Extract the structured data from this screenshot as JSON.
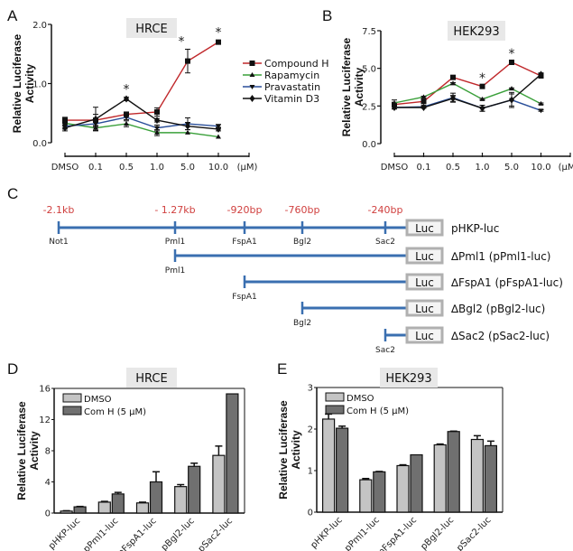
{
  "chart_data": [
    {
      "panel": "A",
      "type": "line",
      "title": "HRCE",
      "xlabel": "",
      "x_unit": "(µM)",
      "ylabel": "Relative Luciferase Activity",
      "ylim": [
        0,
        2.0
      ],
      "yticks": [
        "0.0",
        "1.0",
        "2.0"
      ],
      "ytick_values": [
        0,
        1.0,
        2.0
      ],
      "categories": [
        "DMSO",
        "0.1",
        "0.5",
        "1.0",
        "5.0",
        "10.0"
      ],
      "series": [
        {
          "name": "Compound H",
          "color": "#c0282b",
          "marker": "square",
          "values": [
            0.38,
            0.38,
            0.48,
            0.52,
            1.38,
            1.7
          ],
          "errors": [
            0.05,
            0.1,
            0.04,
            0.07,
            0.2,
            0.03
          ]
        },
        {
          "name": "Rapamycin",
          "color": "#3aa03a",
          "marker": "triangle-up",
          "values": [
            0.33,
            0.25,
            0.32,
            0.17,
            0.17,
            0.1
          ],
          "errors": [
            0.05,
            0.04,
            0.05,
            0.05,
            0.02,
            0.01
          ]
        },
        {
          "name": "Pravastatin",
          "color": "#2a4f9a",
          "marker": "triangle-down",
          "values": [
            0.28,
            0.32,
            0.43,
            0.25,
            0.32,
            0.28
          ],
          "errors": [
            0.05,
            0.06,
            0.04,
            0.05,
            0.1,
            0.03
          ]
        },
        {
          "name": "Vitamin D3",
          "color": "#111111",
          "marker": "diamond",
          "values": [
            0.25,
            0.4,
            0.74,
            0.38,
            0.28,
            0.23
          ],
          "errors": [
            0.05,
            0.2,
            0.03,
            0.03,
            0.06,
            0.03
          ]
        }
      ],
      "annotations": [
        {
          "text": "*",
          "category": "0.5",
          "series": "Vitamin D3"
        },
        {
          "text": "*",
          "category": "5.0",
          "series": "Compound H"
        },
        {
          "text": "*",
          "category": "10.0",
          "series": "Compound H"
        }
      ],
      "legend": "right"
    },
    {
      "panel": "B",
      "type": "line",
      "title": "HEK293",
      "xlabel": "",
      "x_unit": "(µM)",
      "ylabel": "Relative Luciferase Activity",
      "ylim": [
        0,
        7.5
      ],
      "yticks": [
        "0.0",
        "2.5",
        "5.0",
        "7.5"
      ],
      "ytick_values": [
        0,
        2.5,
        5.0,
        7.5
      ],
      "categories": [
        "DMSO",
        "0.1",
        "0.5",
        "1.0",
        "5.0",
        "10.0"
      ],
      "series": [
        {
          "name": "Compound H",
          "color": "#c0282b",
          "marker": "square",
          "values": [
            2.6,
            2.8,
            4.4,
            3.8,
            5.4,
            4.5
          ],
          "errors": [
            0.1,
            0.1,
            0.05,
            0.05,
            0.05,
            0.1
          ]
        },
        {
          "name": "Rapamycin",
          "color": "#3aa03a",
          "marker": "triangle-up",
          "values": [
            2.7,
            3.1,
            4.0,
            2.95,
            3.65,
            2.65
          ],
          "errors": [
            0.2,
            0.05,
            0.05,
            0.05,
            0.05,
            0.05
          ]
        },
        {
          "name": "Pravastatin",
          "color": "#2a4f9a",
          "marker": "triangle-down",
          "values": [
            2.4,
            2.45,
            3.05,
            2.35,
            2.9,
            2.2
          ],
          "errors": [
            0.1,
            0.05,
            0.3,
            0.2,
            0.5,
            0.05
          ]
        },
        {
          "name": "Vitamin D3",
          "color": "#111111",
          "marker": "diamond",
          "values": [
            2.4,
            2.4,
            3.0,
            2.35,
            2.9,
            4.6
          ],
          "errors": [
            0.1,
            0.05,
            0.2,
            0.2,
            0.4,
            0.1
          ]
        }
      ],
      "annotations": [
        {
          "text": "*",
          "category": "1.0",
          "series": "Compound H"
        },
        {
          "text": "*",
          "category": "5.0",
          "series": "Compound H"
        }
      ]
    },
    {
      "panel": "D",
      "type": "bar",
      "title": "HRCE",
      "ylabel": "Relative Luciferase Activity",
      "ylim": [
        0,
        16
      ],
      "yticks": [
        "0",
        "4",
        "8",
        "12",
        "16"
      ],
      "ytick_values": [
        0,
        4,
        8,
        12,
        16
      ],
      "categories": [
        "pHKP-luc",
        "pPml1-luc",
        "pFspA1-luc",
        "pBgl2-luc",
        "pSac2-luc"
      ],
      "series": [
        {
          "name": "DMSO",
          "color": "#c4c4c4",
          "values": [
            0.25,
            1.4,
            1.3,
            3.4,
            7.4
          ],
          "errors": [
            0.05,
            0.1,
            0.1,
            0.25,
            1.2
          ]
        },
        {
          "name": "Com H (5 µM)",
          "color": "#707070",
          "values": [
            0.8,
            2.45,
            4.0,
            6.0,
            15.3
          ],
          "errors": [
            0.05,
            0.2,
            1.3,
            0.4,
            0.0
          ]
        }
      ],
      "legend": "top-left"
    },
    {
      "panel": "E",
      "type": "bar",
      "title": "HEK293",
      "ylabel": "Relative Luciferase Activity",
      "ylim": [
        0,
        3
      ],
      "yticks": [
        "0",
        "1",
        "2",
        "3"
      ],
      "ytick_values": [
        0,
        1,
        2,
        3
      ],
      "categories": [
        "pHKP-luc",
        "pPml1-luc",
        "pFspA1-luc",
        "pBgl2-luc",
        "pSac2-luc"
      ],
      "series": [
        {
          "name": "DMSO",
          "color": "#c4c4c4",
          "values": [
            2.24,
            0.78,
            1.12,
            1.62,
            1.75
          ],
          "errors": [
            0.12,
            0.03,
            0.02,
            0.02,
            0.09
          ]
        },
        {
          "name": "Com H (5 µM)",
          "color": "#707070",
          "values": [
            2.02,
            0.97,
            1.38,
            1.94,
            1.6
          ],
          "errors": [
            0.05,
            0.01,
            0.0,
            0.01,
            0.11
          ]
        }
      ],
      "legend": "top-left"
    }
  ],
  "panels": {
    "A": "A",
    "B": "B",
    "C": "C",
    "D": "D",
    "E": "E"
  },
  "diagram": {
    "positions": [
      "-2.1kb",
      "- 1.27kb",
      "-920bp",
      "-760bp",
      "-240bp"
    ],
    "sites": [
      "Not1",
      "Pml1",
      "FspA1",
      "Bgl2",
      "Sac2"
    ],
    "luc_label": "Luc",
    "constructs": [
      {
        "label": "pHKP-luc",
        "start_site": "Not1"
      },
      {
        "label": "∆Pml1 (pPml1-luc)",
        "start_site": "Pml1"
      },
      {
        "label": "∆FspA1 (pFspA1-luc)",
        "start_site": "FspA1"
      },
      {
        "label": "∆Bgl2 (pBgl2-luc)",
        "start_site": "Bgl2"
      },
      {
        "label": "∆Sac2 (pSac2-luc)",
        "start_site": "Sac2"
      }
    ],
    "line_color": "#3a6fb0",
    "label_color": "#d0403f"
  }
}
